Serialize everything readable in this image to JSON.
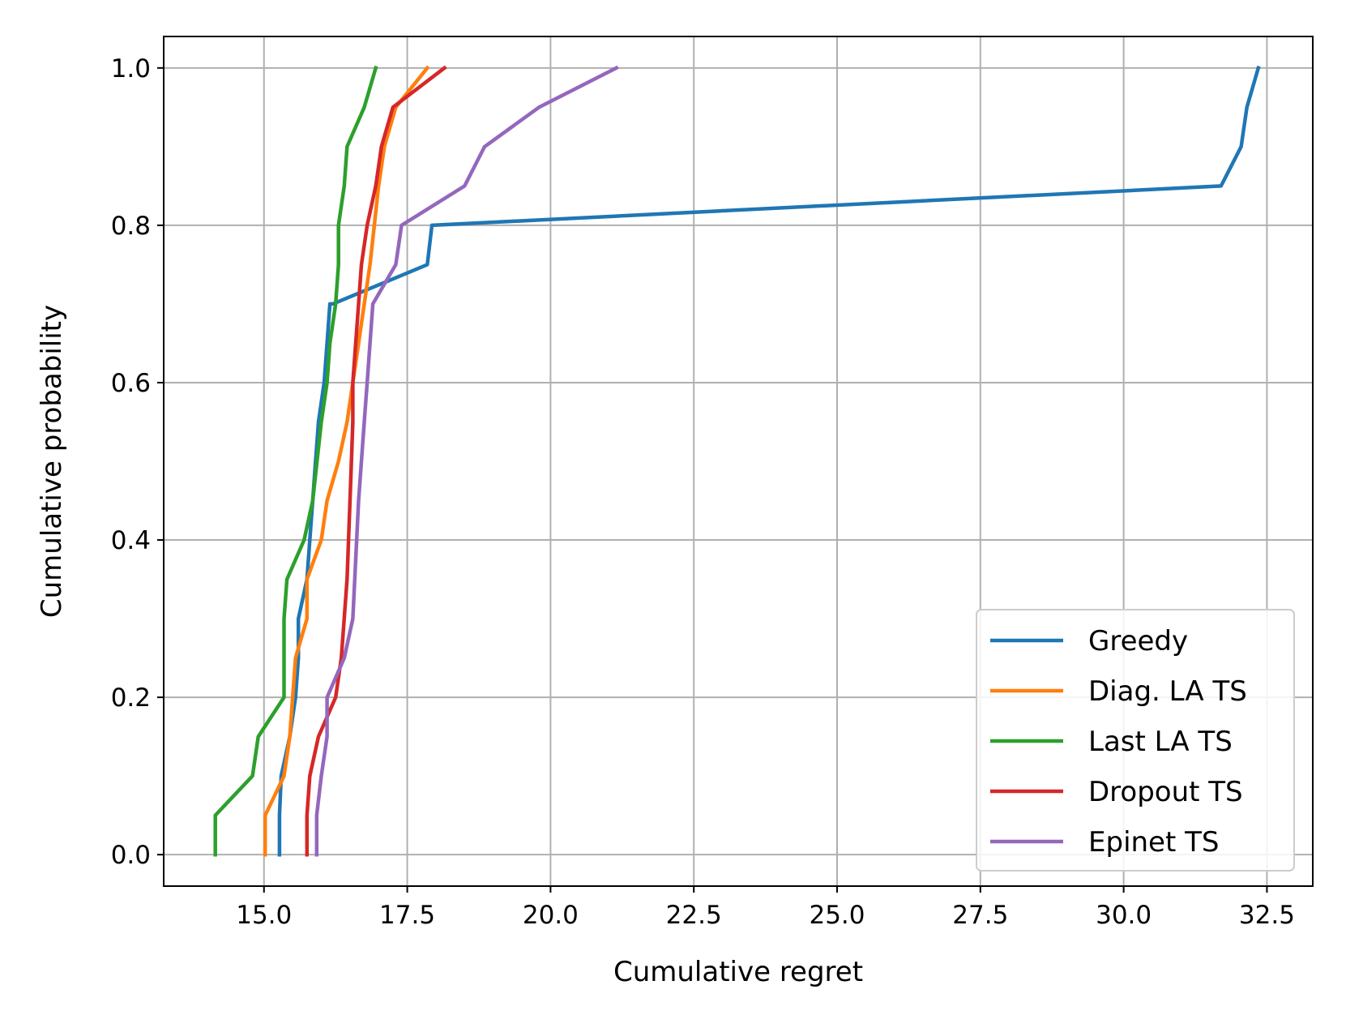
{
  "chart_data": {
    "type": "line",
    "title": "",
    "xlabel": "Cumulative regret",
    "ylabel": "Cumulative probability",
    "xlim": [
      13.25,
      33.3
    ],
    "ylim": [
      -0.04,
      1.04
    ],
    "xticks": [
      15.0,
      17.5,
      20.0,
      22.5,
      25.0,
      27.5,
      30.0,
      32.5
    ],
    "xtick_labels": [
      "15.0",
      "17.5",
      "20.0",
      "22.5",
      "25.0",
      "27.5",
      "30.0",
      "32.5"
    ],
    "yticks": [
      0.0,
      0.2,
      0.4,
      0.6,
      0.8,
      1.0
    ],
    "ytick_labels": [
      "0.0",
      "0.2",
      "0.4",
      "0.6",
      "0.8",
      "1.0"
    ],
    "grid": true,
    "legend_position": "bottom-right",
    "series": [
      {
        "name": "Greedy",
        "color": "#1f77b4",
        "x": [
          15.27,
          15.27,
          15.3,
          15.45,
          15.55,
          15.6,
          15.6,
          15.75,
          15.8,
          15.85,
          15.9,
          15.95,
          16.05,
          16.1,
          16.15,
          16.2,
          17.85,
          17.93,
          31.7,
          32.05,
          32.15,
          32.35
        ],
        "y": [
          0.0,
          0.05,
          0.1,
          0.15,
          0.2,
          0.25,
          0.3,
          0.35,
          0.4,
          0.45,
          0.5,
          0.55,
          0.6,
          0.65,
          0.7,
          0.7,
          0.75,
          0.8,
          0.85,
          0.9,
          0.95,
          1.0
        ]
      },
      {
        "name": "Diag. LA TS",
        "color": "#ff7f0e",
        "x": [
          15.02,
          15.02,
          15.35,
          15.45,
          15.55,
          15.75,
          15.75,
          16.0,
          16.1,
          16.3,
          16.45,
          16.55,
          16.65,
          16.75,
          16.85,
          17.0,
          17.1,
          17.3,
          17.85
        ],
        "y": [
          0.0,
          0.05,
          0.1,
          0.15,
          0.25,
          0.3,
          0.35,
          0.4,
          0.45,
          0.5,
          0.55,
          0.6,
          0.65,
          0.7,
          0.75,
          0.85,
          0.9,
          0.95,
          1.0
        ]
      },
      {
        "name": "Last LA TS",
        "color": "#2ca02c",
        "x": [
          14.15,
          14.15,
          14.8,
          14.9,
          15.35,
          15.35,
          15.4,
          15.7,
          15.85,
          16.0,
          16.1,
          16.15,
          16.25,
          16.3,
          16.3,
          16.4,
          16.45,
          16.75,
          16.95
        ],
        "y": [
          0.0,
          0.05,
          0.1,
          0.15,
          0.2,
          0.3,
          0.35,
          0.4,
          0.45,
          0.55,
          0.6,
          0.65,
          0.7,
          0.75,
          0.8,
          0.85,
          0.9,
          0.95,
          1.0
        ]
      },
      {
        "name": "Dropout TS",
        "color": "#d62728",
        "x": [
          15.75,
          15.75,
          15.8,
          15.95,
          16.25,
          16.35,
          16.45,
          16.5,
          16.55,
          16.55,
          16.65,
          16.7,
          16.8,
          16.95,
          17.05,
          17.25,
          18.15
        ],
        "y": [
          0.0,
          0.05,
          0.1,
          0.15,
          0.2,
          0.25,
          0.35,
          0.45,
          0.55,
          0.6,
          0.7,
          0.75,
          0.8,
          0.85,
          0.9,
          0.95,
          1.0
        ]
      },
      {
        "name": "Epinet TS",
        "color": "#9467bd",
        "x": [
          15.92,
          15.92,
          16.0,
          16.1,
          16.1,
          16.4,
          16.55,
          16.65,
          16.75,
          16.8,
          16.9,
          17.3,
          17.4,
          18.5,
          18.85,
          19.8,
          21.15
        ],
        "y": [
          0.0,
          0.05,
          0.1,
          0.15,
          0.2,
          0.25,
          0.3,
          0.45,
          0.55,
          0.6,
          0.7,
          0.75,
          0.8,
          0.85,
          0.9,
          0.95,
          1.0
        ]
      }
    ]
  }
}
